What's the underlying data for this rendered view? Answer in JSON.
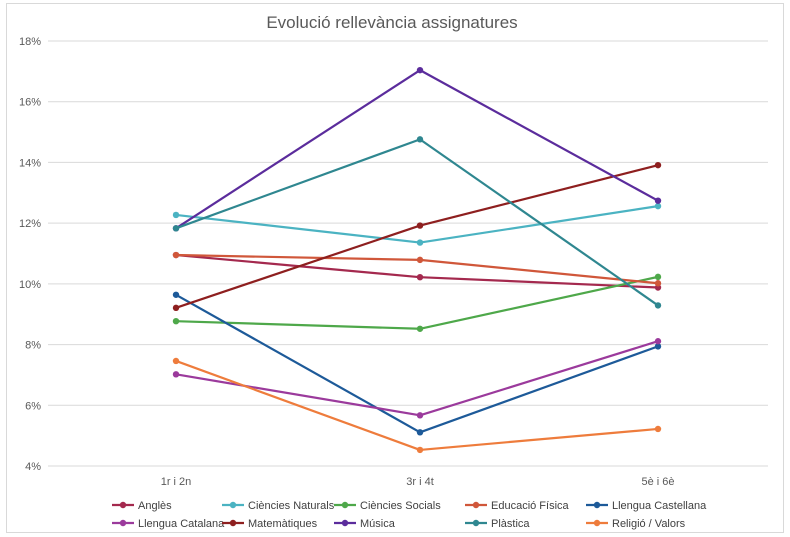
{
  "chart_data": {
    "type": "line",
    "title": "Evolució rellevància assignatures",
    "xlabel": "",
    "ylabel": "",
    "categories": [
      "1r i 2n",
      "3r i 4t",
      "5è i 6è"
    ],
    "ylim": [
      4,
      18
    ],
    "yticks": [
      4,
      6,
      8,
      10,
      12,
      14,
      16,
      18
    ],
    "ytick_labels": [
      "4%",
      "6%",
      "8%",
      "10%",
      "12%",
      "14%",
      "16%",
      "18%"
    ],
    "grid": "horizontal",
    "legend_position": "bottom",
    "series": [
      {
        "name": "Anglès",
        "color": "#A4294E",
        "values": [
          10.95,
          10.22,
          9.88
        ]
      },
      {
        "name": "Ciències Naturals",
        "color": "#4BB3C2",
        "values": [
          12.27,
          11.36,
          12.56
        ]
      },
      {
        "name": "Ciències Socials",
        "color": "#4EA84A",
        "values": [
          8.77,
          8.52,
          10.23
        ]
      },
      {
        "name": "Educació Física",
        "color": "#D0573A",
        "values": [
          10.95,
          10.79,
          10.02
        ]
      },
      {
        "name": "Llengua Castellana",
        "color": "#1D5A99",
        "values": [
          9.64,
          5.11,
          7.94
        ]
      },
      {
        "name": "Llengua Catalana",
        "color": "#9B3A9C",
        "values": [
          7.02,
          5.67,
          8.11
        ]
      },
      {
        "name": "Matemàtiques",
        "color": "#8E1F1F",
        "values": [
          9.21,
          11.92,
          13.91
        ]
      },
      {
        "name": "Música",
        "color": "#5B2C9C",
        "values": [
          11.83,
          17.04,
          12.74
        ]
      },
      {
        "name": "Plàstica",
        "color": "#2F8790",
        "values": [
          11.83,
          14.76,
          9.29
        ]
      },
      {
        "name": "Religió / Valors",
        "color": "#EE7C3C",
        "values": [
          7.46,
          4.53,
          5.22
        ]
      }
    ]
  }
}
